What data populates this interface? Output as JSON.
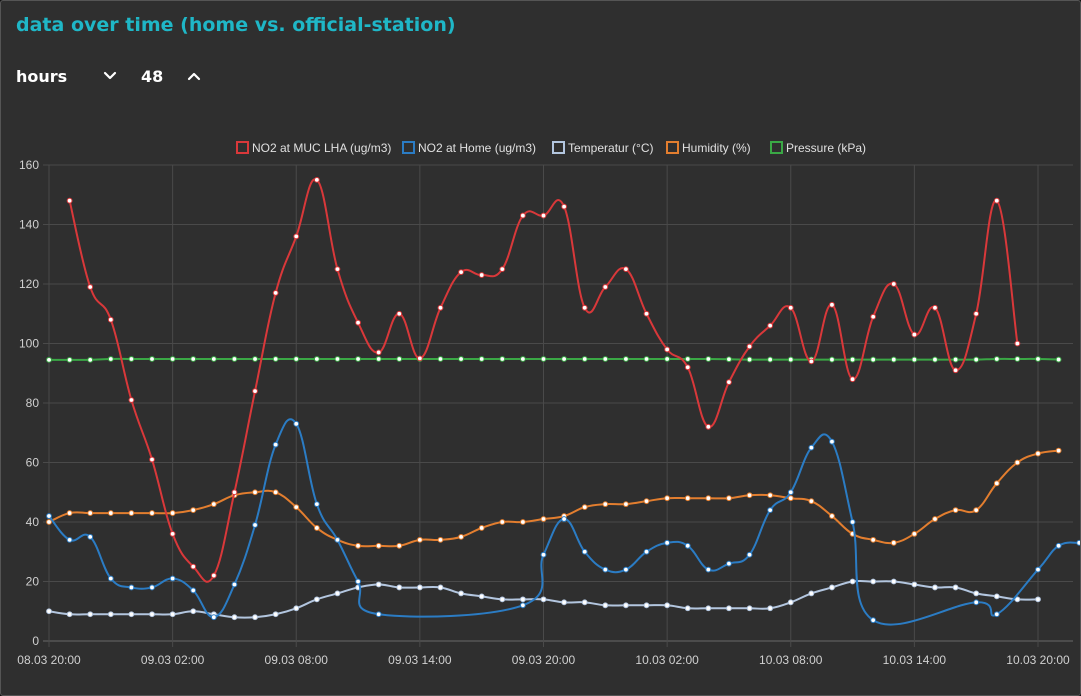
{
  "title": "data over time (home vs. official-station)",
  "controls": {
    "unit_label": "hours",
    "value": "48"
  },
  "chart_data": {
    "type": "line",
    "ylim": [
      0,
      160
    ],
    "yticks": [
      0,
      20,
      40,
      60,
      80,
      100,
      120,
      140,
      160
    ],
    "x_count": 48,
    "xtick_labels": [
      {
        "index": 0,
        "label": "08.03 20:00"
      },
      {
        "index": 6,
        "label": "09.03 02:00"
      },
      {
        "index": 12,
        "label": "09.03 08:00"
      },
      {
        "index": 18,
        "label": "09.03 14:00"
      },
      {
        "index": 24,
        "label": "09.03 20:00"
      },
      {
        "index": 30,
        "label": "10.03 02:00"
      },
      {
        "index": 36,
        "label": "10.03 08:00"
      },
      {
        "index": 42,
        "label": "10.03 14:00"
      },
      {
        "index": 48,
        "label": "10.03 20:00"
      }
    ],
    "series": [
      {
        "name": "NO2 at MUC LHA (ug/m3)",
        "color": "#d9383a",
        "start": 1,
        "values": [
          148,
          119,
          108,
          81,
          61,
          36,
          25,
          22,
          50,
          84,
          117,
          136,
          155,
          125,
          107,
          97,
          110,
          95,
          112,
          124,
          123,
          125,
          143,
          143,
          146,
          112,
          119,
          125,
          110,
          98,
          92,
          72,
          87,
          99,
          106,
          112,
          94,
          113,
          88,
          109,
          120,
          103,
          112,
          91,
          110,
          148,
          100
        ]
      },
      {
        "name": "NO2 at Home (ug/m3)",
        "color": "#2b7cc4",
        "start": 0,
        "values": [
          42,
          34,
          35,
          21,
          18,
          18,
          21,
          17,
          8,
          19,
          39,
          66,
          73,
          46,
          34,
          20,
          9,
          null,
          null,
          null,
          null,
          null,
          null,
          12,
          29,
          41,
          30,
          24,
          24,
          30,
          33,
          32,
          24,
          26,
          29,
          44,
          50,
          65,
          67,
          40,
          7,
          null,
          null,
          null,
          null,
          13,
          9,
          null,
          24,
          32,
          33
        ]
      },
      {
        "name": "Temperatur (°C)",
        "color": "#b3c6df",
        "start": 0,
        "values": [
          10,
          9,
          9,
          9,
          9,
          9,
          9,
          10,
          9,
          8,
          8,
          9,
          11,
          14,
          16,
          18,
          19,
          18,
          18,
          18,
          16,
          15,
          14,
          14,
          14,
          13,
          13,
          12,
          12,
          12,
          12,
          11,
          11,
          11,
          11,
          11,
          13,
          16,
          18,
          20,
          20,
          20,
          19,
          18,
          18,
          16,
          15,
          14,
          14
        ]
      },
      {
        "name": "Humidity (%)",
        "color": "#e37e2f",
        "start": 0,
        "values": [
          40,
          43,
          43,
          43,
          43,
          43,
          43,
          44,
          46,
          49,
          50,
          50,
          45,
          38,
          34,
          32,
          32,
          32,
          34,
          34,
          35,
          38,
          40,
          40,
          41,
          42,
          45,
          46,
          46,
          47,
          48,
          48,
          48,
          48,
          49,
          49,
          48,
          47,
          42,
          36,
          34,
          33,
          36,
          41,
          44,
          44,
          53,
          60,
          63,
          64
        ]
      },
      {
        "name": "Pressure (kPa)",
        "color": "#3aa845",
        "start": 0,
        "values": [
          94.5,
          94.5,
          94.5,
          94.8,
          94.8,
          94.8,
          94.8,
          94.8,
          94.8,
          94.8,
          94.8,
          94.8,
          94.8,
          94.8,
          94.8,
          94.8,
          94.8,
          94.8,
          94.8,
          94.8,
          94.8,
          94.8,
          94.8,
          94.8,
          94.8,
          94.8,
          94.8,
          94.8,
          94.8,
          94.8,
          94.8,
          94.8,
          94.8,
          94.7,
          94.6,
          94.6,
          94.6,
          94.6,
          94.6,
          94.6,
          94.6,
          94.6,
          94.6,
          94.6,
          94.6,
          94.6,
          94.8,
          94.8,
          94.8,
          94.6
        ]
      }
    ]
  }
}
